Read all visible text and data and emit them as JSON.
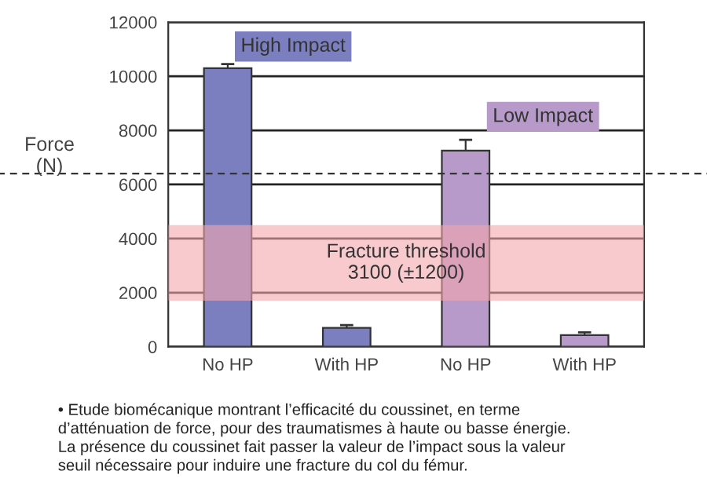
{
  "chart_data": {
    "type": "bar",
    "ylabel": "Force\n(N)",
    "categories": [
      "No HP",
      "With HP",
      "No HP",
      "With HP"
    ],
    "values": [
      10300,
      700,
      7250,
      430
    ],
    "colors": [
      "#7b7fc0",
      "#7b7fc0",
      "#b79ac9",
      "#b79ac9"
    ],
    "errors": [
      150,
      100,
      400,
      100
    ],
    "ylim": [
      0,
      12000
    ],
    "yticks": [
      0,
      2000,
      4000,
      6000,
      8000,
      10000,
      12000
    ],
    "grid": "y",
    "bands": [
      {
        "axis": "y",
        "from": 1700,
        "to": 4500,
        "label": "Fracture threshold\n3100 (±1200)",
        "color": "#f4a6ad"
      }
    ],
    "ref_lines": [
      {
        "axis": "y",
        "value": 6400,
        "label": null,
        "line_style": "dashed",
        "color": "#333333"
      }
    ],
    "annotations": [
      "High Impact",
      "Low Impact",
      "• Etude biomécanique montrant l’efficacité du coussinet, en terme\nd’atténuation de force, pour des traumatismes à haute ou basse énergie.\nLa présence du coussinet fait passer la valeur de l’impact sous la valeur\nseuil nécessaire pour induire une fracture du col du fémur."
    ]
  }
}
